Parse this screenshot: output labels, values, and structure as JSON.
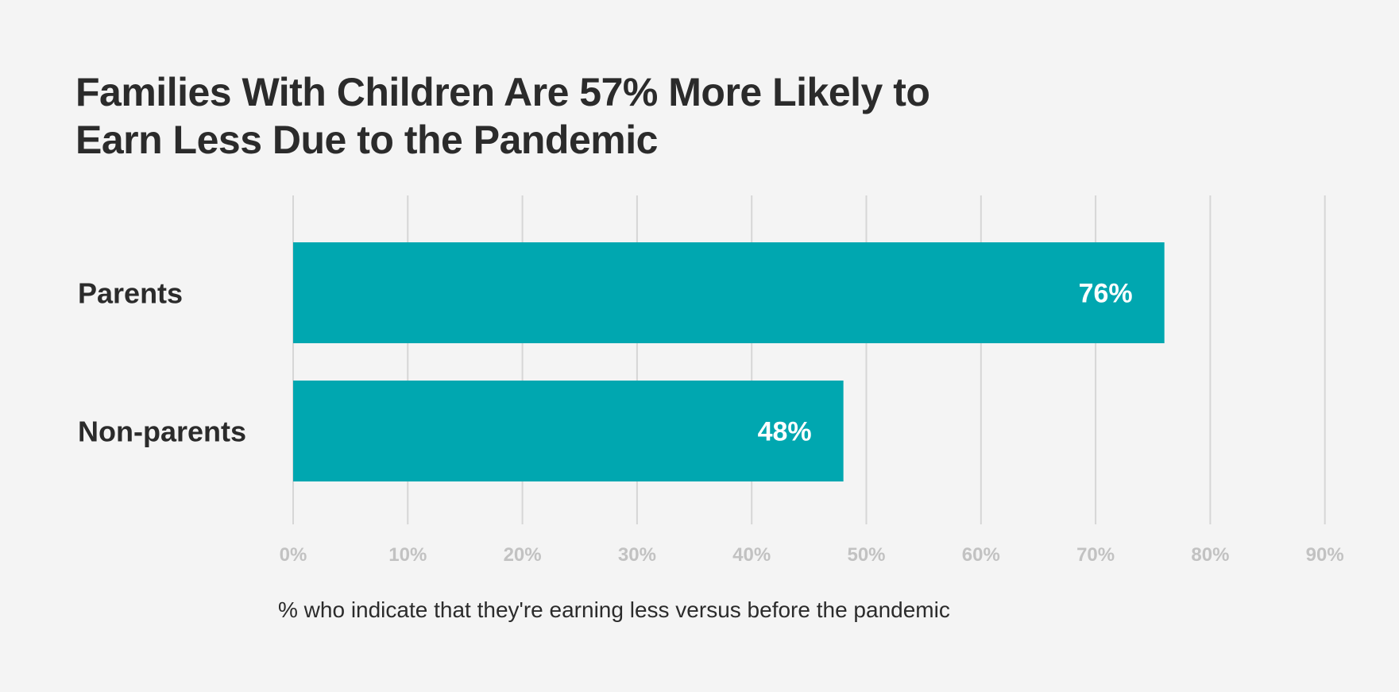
{
  "title_lines": [
    "Families With Children Are 57% More Likely to",
    "Earn Less Due to the Pandemic"
  ],
  "footnote": "% who indicate that they're earning less versus before the pandemic",
  "colors": {
    "bar": "#00a7b0",
    "grid": "#d6d6d6",
    "background": "#f4f4f4",
    "tick_text": "#c2c2c2",
    "text": "#2b2b2b"
  },
  "chart_data": {
    "type": "bar",
    "orientation": "horizontal",
    "title": "Families With Children Are 57% More Likely to Earn Less Due to the Pandemic",
    "categories": [
      "Parents",
      "Non-parents"
    ],
    "values": [
      76,
      48
    ],
    "value_labels": [
      "76%",
      "48%"
    ],
    "xlabel": "% who indicate that they're earning less versus before the pandemic",
    "xlim": [
      0,
      90
    ],
    "xticks": [
      0,
      10,
      20,
      30,
      40,
      50,
      60,
      70,
      80,
      90
    ],
    "xtick_labels": [
      "0%",
      "10%",
      "20%",
      "30%",
      "40%",
      "50%",
      "60%",
      "70%",
      "80%",
      "90%"
    ],
    "grid": true,
    "legend": "none"
  }
}
